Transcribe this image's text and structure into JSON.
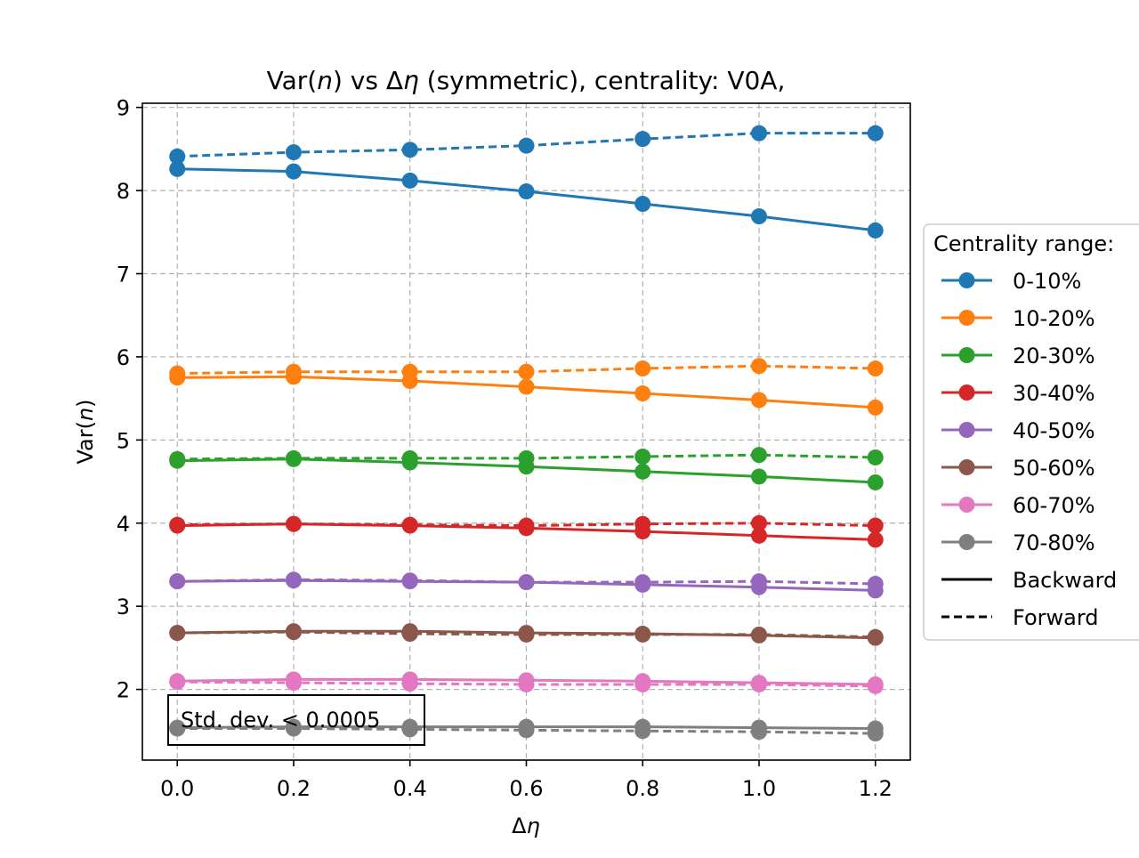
{
  "chart_data": {
    "type": "line",
    "title": "Var(n) vs Δη (symmetric), centrality: V0A,",
    "xlabel": "Δη",
    "ylabel": "Var(n)",
    "xlim": [
      -0.06,
      1.26
    ],
    "ylim": [
      1.15,
      9.05
    ],
    "xticks": [
      0.0,
      0.2,
      0.4,
      0.6,
      0.8,
      1.0,
      1.2
    ],
    "xtick_labels": [
      "0.0",
      "0.2",
      "0.4",
      "0.6",
      "0.8",
      "1.0",
      "1.2"
    ],
    "yticks": [
      2,
      3,
      4,
      5,
      6,
      7,
      8,
      9
    ],
    "ytick_labels": [
      "2",
      "3",
      "4",
      "5",
      "6",
      "7",
      "8",
      "9"
    ],
    "grid": true,
    "legend_title": "Centrality range:",
    "legend_position": "outside-right",
    "legend_style_labels": {
      "solid": "Backward",
      "dashed": "Forward"
    },
    "annotation": "Std. dev. < 0.0005",
    "x": [
      0.0,
      0.2,
      0.4,
      0.6,
      0.8,
      1.0,
      1.2
    ],
    "series": [
      {
        "name": "0-10%",
        "color": "#1f77b4",
        "backward": [
          8.26,
          8.23,
          8.12,
          7.99,
          7.84,
          7.69,
          7.52
        ],
        "forward": [
          8.41,
          8.46,
          8.49,
          8.54,
          8.62,
          8.69,
          8.69
        ]
      },
      {
        "name": "10-20%",
        "color": "#ff7f0e",
        "backward": [
          5.75,
          5.76,
          5.71,
          5.64,
          5.56,
          5.48,
          5.39
        ],
        "forward": [
          5.8,
          5.82,
          5.82,
          5.82,
          5.86,
          5.89,
          5.86
        ]
      },
      {
        "name": "20-30%",
        "color": "#2ca02c",
        "backward": [
          4.75,
          4.77,
          4.73,
          4.68,
          4.62,
          4.56,
          4.49
        ],
        "forward": [
          4.77,
          4.78,
          4.78,
          4.78,
          4.8,
          4.82,
          4.79
        ]
      },
      {
        "name": "30-40%",
        "color": "#d62728",
        "backward": [
          3.97,
          3.99,
          3.97,
          3.94,
          3.9,
          3.85,
          3.8
        ],
        "forward": [
          3.98,
          3.99,
          3.98,
          3.97,
          3.99,
          4.0,
          3.97
        ]
      },
      {
        "name": "40-50%",
        "color": "#9467bd",
        "backward": [
          3.3,
          3.31,
          3.3,
          3.29,
          3.26,
          3.23,
          3.19
        ],
        "forward": [
          3.3,
          3.32,
          3.31,
          3.29,
          3.29,
          3.3,
          3.27
        ]
      },
      {
        "name": "50-60%",
        "color": "#8c564b",
        "backward": [
          2.68,
          2.7,
          2.7,
          2.68,
          2.67,
          2.65,
          2.62
        ],
        "forward": [
          2.68,
          2.69,
          2.67,
          2.66,
          2.66,
          2.66,
          2.63
        ]
      },
      {
        "name": "60-70%",
        "color": "#e377c2",
        "backward": [
          2.1,
          2.12,
          2.12,
          2.11,
          2.1,
          2.08,
          2.06
        ],
        "forward": [
          2.09,
          2.08,
          2.07,
          2.06,
          2.06,
          2.06,
          2.04
        ]
      },
      {
        "name": "70-80%",
        "color": "#7f7f7f",
        "backward": [
          1.54,
          1.55,
          1.55,
          1.55,
          1.55,
          1.54,
          1.53
        ],
        "forward": [
          1.53,
          1.53,
          1.52,
          1.51,
          1.5,
          1.49,
          1.47
        ]
      }
    ]
  }
}
